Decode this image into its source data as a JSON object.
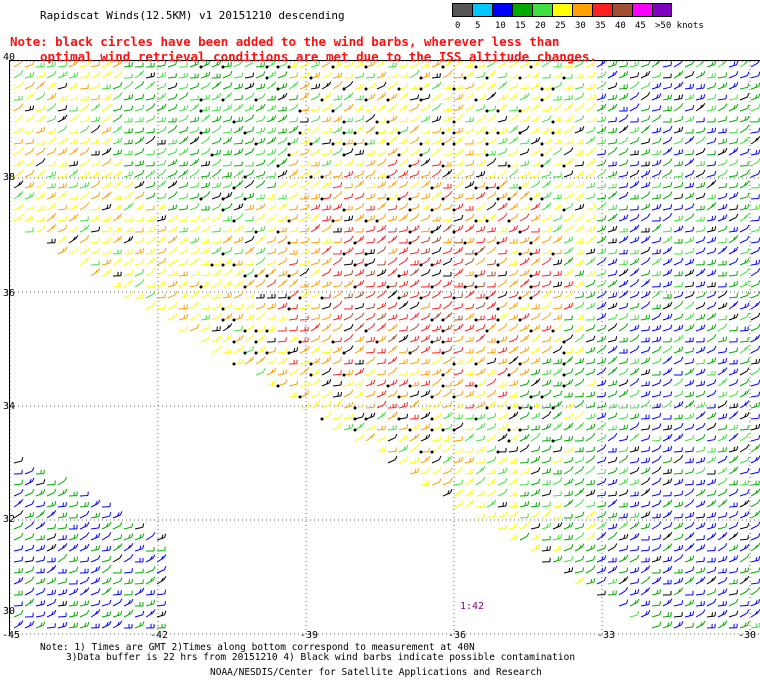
{
  "title": "Rapidscat Winds(12.5KM) v1 20151210 descending",
  "note": {
    "line1": "Note: black circles have been added to the wind barbs, wherever less than",
    "line2": "optimal wind retrieval conditions are met due to the ISS altitude changes."
  },
  "color_scale": {
    "labels": [
      "0",
      "5",
      "10",
      "15",
      "20",
      "25",
      "30",
      "35",
      "40",
      "45",
      ">50 knots"
    ],
    "colors": [
      "#555555",
      "#00c8ff",
      "#0000ff",
      "#00aa00",
      "#40e040",
      "#ffff00",
      "#ffa000",
      "#ff2020",
      "#a05030",
      "#ff00ff",
      "#8000c0"
    ]
  },
  "axes": {
    "lat_labels": [
      "40",
      "38",
      "36",
      "34",
      "32",
      "30"
    ],
    "lon_labels": [
      "-45",
      "-42",
      "-39",
      "-36",
      "-33",
      "-30"
    ]
  },
  "time_label": "1:42",
  "footer": {
    "line1": "Note: 1) Times are GMT 2)Times along bottom correspond to measurement at 40N",
    "line2": "3)Data buffer is 22 hrs from 20151210 4) Black wind barbs indicate possible contamination",
    "line3": "NOAA/NESDIS/Center for Satellite Applications and Research"
  }
}
